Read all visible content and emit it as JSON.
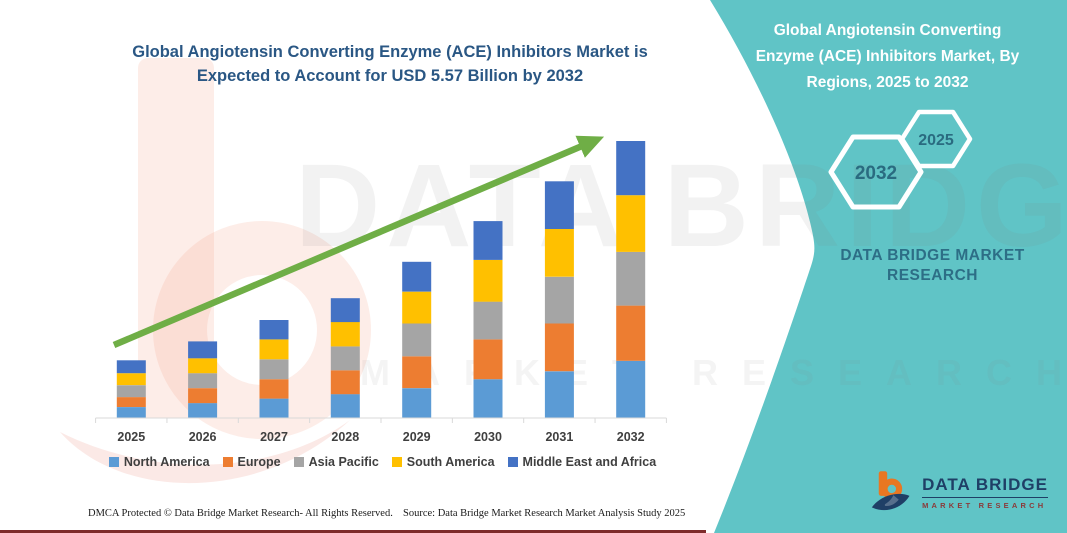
{
  "page": {
    "background": "#ffffff",
    "accent_teal": "#60C4C6",
    "maroon_line_color": "#7E2B2B",
    "title_color": "#2A5784",
    "axis_text_color": "#3F3F3F"
  },
  "title": {
    "lines": [
      "Global Angiotensin Converting Enzyme (ACE) Inhibitors Market is",
      "Expected to Account for USD 5.57 Billion by 2032"
    ]
  },
  "chart_data": {
    "type": "bar",
    "stacked": true,
    "title": "Global Angiotensin Converting Enzyme (ACE) Inhibitors Market is Expected to Account for USD 5.57 Billion by 2032",
    "units": "USD Billion (estimated; chart shows no y-axis)",
    "categories": [
      "2025",
      "2026",
      "2027",
      "2028",
      "2029",
      "2030",
      "2031",
      "2032"
    ],
    "series": [
      {
        "name": "North America",
        "color": "#5B9BD5",
        "values": [
          0.22,
          0.3,
          0.39,
          0.48,
          0.6,
          0.78,
          0.94,
          1.15
        ]
      },
      {
        "name": "Europe",
        "color": "#ED7D31",
        "values": [
          0.2,
          0.3,
          0.39,
          0.48,
          0.64,
          0.8,
          0.96,
          1.11
        ]
      },
      {
        "name": "Asia Pacific",
        "color": "#A5A5A5",
        "values": [
          0.24,
          0.3,
          0.4,
          0.48,
          0.66,
          0.76,
          0.94,
          1.08
        ]
      },
      {
        "name": "South America",
        "color": "#FFC000",
        "values": [
          0.24,
          0.3,
          0.4,
          0.49,
          0.64,
          0.84,
          0.96,
          1.14
        ]
      },
      {
        "name": "Middle East and Africa",
        "color": "#4472C4",
        "values": [
          0.26,
          0.34,
          0.39,
          0.48,
          0.6,
          0.78,
          0.96,
          1.09
        ]
      }
    ],
    "totals": [
      1.16,
      1.54,
      1.97,
      2.41,
      3.14,
      3.96,
      4.76,
      5.57
    ],
    "annotations": [
      "upward green trend arrow across bars"
    ],
    "trend_arrow_color": "#6FAE46",
    "legend_position": "bottom",
    "grid": false,
    "y_axis_shown": false
  },
  "watermark": {
    "big_text": "DATA BRIDGE",
    "sub_text": "MARKET RESEARCH"
  },
  "sidebar": {
    "heading_lines": [
      "Global Angiotensin Converting",
      "Enzyme (ACE) Inhibitors Market, By",
      "Regions, 2025 to 2032"
    ],
    "hexagon_left_label": "2032",
    "hexagon_right_label": "2025",
    "hexagon_text_color": "#2A6B80",
    "brand_lines": [
      "DATA BRIDGE MARKET",
      "RESEARCH"
    ],
    "brand_text_color": "#2D6E86"
  },
  "footer": {
    "dmca": "DMCA Protected © Data Bridge Market Research-  All Rights Reserved.",
    "source": "Source: Data Bridge Market Research  Market Analysis Study 2025"
  },
  "logo": {
    "brand": "DATA BRIDGE",
    "sub": "MARKET RESEARCH",
    "navy": "#1F3F66",
    "orange": "#E87722"
  }
}
